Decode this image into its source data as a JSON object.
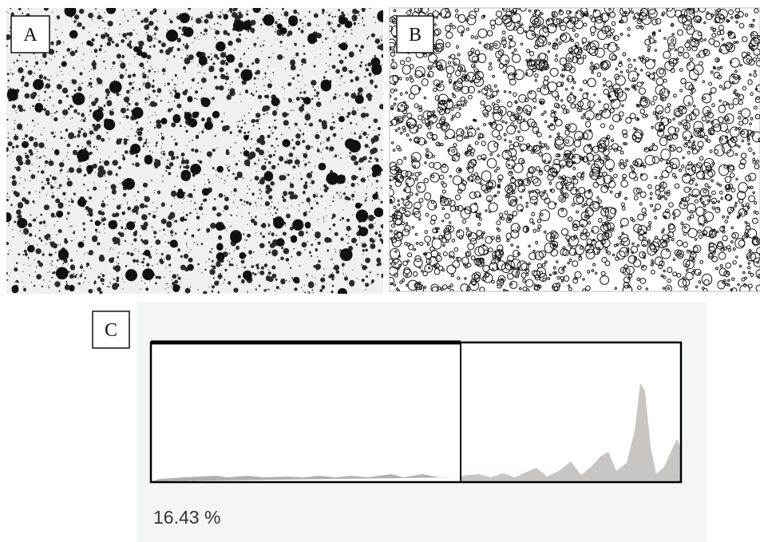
{
  "panels": {
    "a": {
      "label": "A"
    },
    "b": {
      "label": "B"
    },
    "c": {
      "label": "C"
    }
  },
  "histogram": {
    "readout": "16.43 %"
  }
}
